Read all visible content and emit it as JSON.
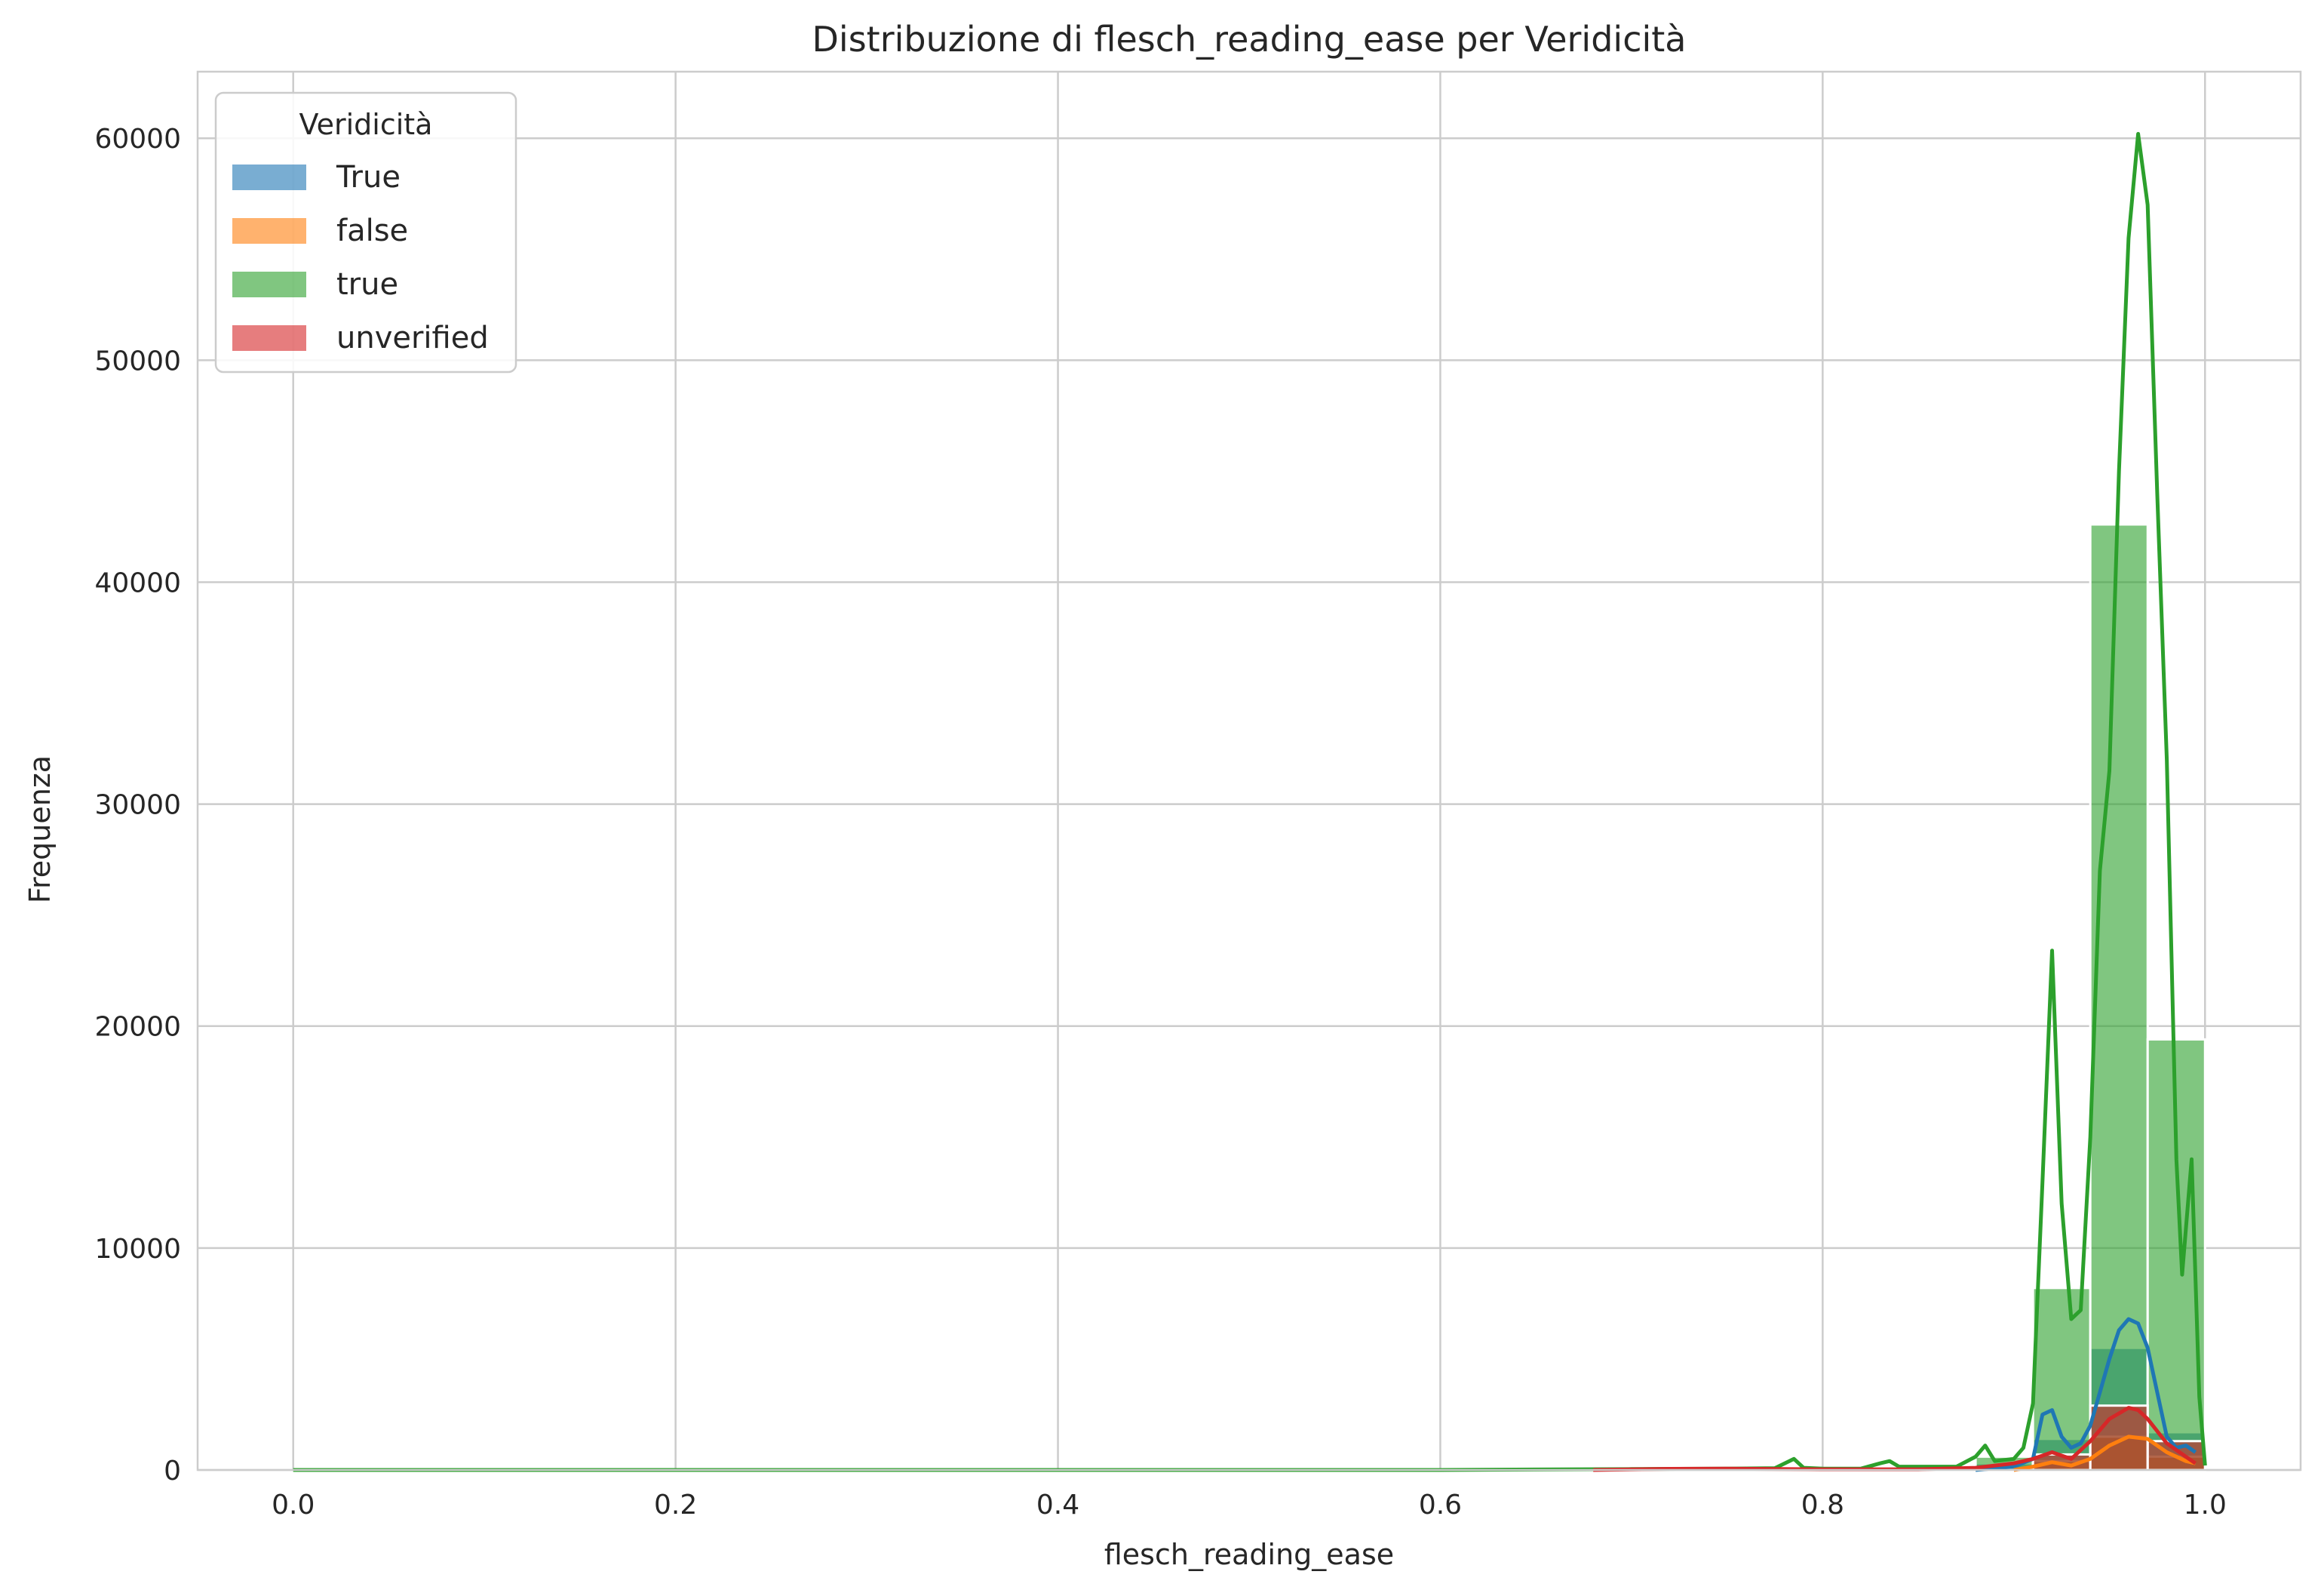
{
  "chart_data": {
    "type": "bar",
    "title": "Distribuzione di flesch_reading_ease per Veridicità",
    "xlabel": "flesch_reading_ease",
    "ylabel": "Frequenza",
    "xlim": [
      -0.05,
      1.05
    ],
    "ylim": [
      0,
      63000
    ],
    "x_ticks": [
      0.0,
      0.2,
      0.4,
      0.6,
      0.8,
      1.0
    ],
    "x_tick_labels": [
      "0.0",
      "0.2",
      "0.4",
      "0.6",
      "0.8",
      "1.0"
    ],
    "y_ticks": [
      0,
      10000,
      20000,
      30000,
      40000,
      50000,
      60000
    ],
    "y_tick_labels": [
      "0",
      "10000",
      "20000",
      "30000",
      "40000",
      "50000",
      "60000"
    ],
    "grid": true,
    "legend": {
      "title": "Veridicità",
      "placement": "top-left"
    },
    "bin_width": 0.03,
    "series": [
      {
        "name": "True",
        "color": "#1f77b4",
        "bars": [
          {
            "x0": 0.88,
            "x1": 0.91,
            "value": 300
          },
          {
            "x0": 0.91,
            "x1": 0.94,
            "value": 1400
          },
          {
            "x0": 0.94,
            "x1": 0.97,
            "value": 5500
          },
          {
            "x0": 0.97,
            "x1": 1.0,
            "value": 1700
          }
        ],
        "kde": [
          [
            0.88,
            0
          ],
          [
            0.9,
            150
          ],
          [
            0.91,
            500
          ],
          [
            0.915,
            2500
          ],
          [
            0.92,
            2700
          ],
          [
            0.925,
            1500
          ],
          [
            0.93,
            1000
          ],
          [
            0.935,
            1200
          ],
          [
            0.94,
            2000
          ],
          [
            0.945,
            3500
          ],
          [
            0.95,
            5000
          ],
          [
            0.955,
            6300
          ],
          [
            0.96,
            6800
          ],
          [
            0.965,
            6600
          ],
          [
            0.97,
            5500
          ],
          [
            0.975,
            3500
          ],
          [
            0.98,
            1500
          ],
          [
            0.985,
            1000
          ],
          [
            0.99,
            1100
          ],
          [
            0.995,
            800
          ]
        ]
      },
      {
        "name": "false",
        "color": "#ff7f0e",
        "bars": [
          {
            "x0": 0.91,
            "x1": 0.94,
            "value": 400
          },
          {
            "x0": 0.94,
            "x1": 0.97,
            "value": 1500
          },
          {
            "x0": 0.97,
            "x1": 1.0,
            "value": 600
          }
        ],
        "kde": [
          [
            0.9,
            0
          ],
          [
            0.91,
            150
          ],
          [
            0.92,
            350
          ],
          [
            0.93,
            200
          ],
          [
            0.94,
            500
          ],
          [
            0.95,
            1100
          ],
          [
            0.96,
            1500
          ],
          [
            0.97,
            1400
          ],
          [
            0.98,
            800
          ],
          [
            0.99,
            400
          ],
          [
            0.995,
            300
          ]
        ]
      },
      {
        "name": "true",
        "color": "#2ca02c",
        "bars": [
          {
            "x0": 0.85,
            "x1": 0.88,
            "value": 150
          },
          {
            "x0": 0.88,
            "x1": 0.91,
            "value": 600
          },
          {
            "x0": 0.91,
            "x1": 0.94,
            "value": 8200
          },
          {
            "x0": 0.94,
            "x1": 0.97,
            "value": 42600
          },
          {
            "x0": 0.97,
            "x1": 1.0,
            "value": 19400
          }
        ],
        "kde": [
          [
            0.0,
            0
          ],
          [
            0.6,
            0
          ],
          [
            0.7,
            40
          ],
          [
            0.75,
            60
          ],
          [
            0.775,
            80
          ],
          [
            0.785,
            500
          ],
          [
            0.79,
            100
          ],
          [
            0.8,
            60
          ],
          [
            0.82,
            60
          ],
          [
            0.83,
            300
          ],
          [
            0.835,
            400
          ],
          [
            0.84,
            150
          ],
          [
            0.86,
            150
          ],
          [
            0.87,
            150
          ],
          [
            0.88,
            600
          ],
          [
            0.885,
            1100
          ],
          [
            0.89,
            400
          ],
          [
            0.9,
            500
          ],
          [
            0.905,
            1000
          ],
          [
            0.91,
            3000
          ],
          [
            0.915,
            13000
          ],
          [
            0.92,
            23400
          ],
          [
            0.925,
            12000
          ],
          [
            0.93,
            6800
          ],
          [
            0.935,
            7200
          ],
          [
            0.94,
            15000
          ],
          [
            0.945,
            27000
          ],
          [
            0.95,
            31500
          ],
          [
            0.955,
            45000
          ],
          [
            0.96,
            55500
          ],
          [
            0.965,
            60200
          ],
          [
            0.97,
            57000
          ],
          [
            0.975,
            44000
          ],
          [
            0.98,
            32000
          ],
          [
            0.985,
            14000
          ],
          [
            0.988,
            8800
          ],
          [
            0.993,
            14000
          ],
          [
            0.997,
            3300
          ],
          [
            1.0,
            200
          ]
        ]
      },
      {
        "name": "unverified",
        "color": "#d62728",
        "bars": [
          {
            "x0": 0.91,
            "x1": 0.94,
            "value": 700
          },
          {
            "x0": 0.94,
            "x1": 0.97,
            "value": 2900
          },
          {
            "x0": 0.97,
            "x1": 1.0,
            "value": 1300
          }
        ],
        "kde": [
          [
            0.68,
            0
          ],
          [
            0.72,
            50
          ],
          [
            0.75,
            60
          ],
          [
            0.8,
            30
          ],
          [
            0.85,
            30
          ],
          [
            0.88,
            100
          ],
          [
            0.9,
            300
          ],
          [
            0.91,
            500
          ],
          [
            0.92,
            800
          ],
          [
            0.93,
            500
          ],
          [
            0.94,
            1300
          ],
          [
            0.95,
            2300
          ],
          [
            0.96,
            2800
          ],
          [
            0.965,
            2700
          ],
          [
            0.97,
            2300
          ],
          [
            0.98,
            1200
          ],
          [
            0.99,
            600
          ],
          [
            0.995,
            300
          ]
        ]
      }
    ]
  }
}
